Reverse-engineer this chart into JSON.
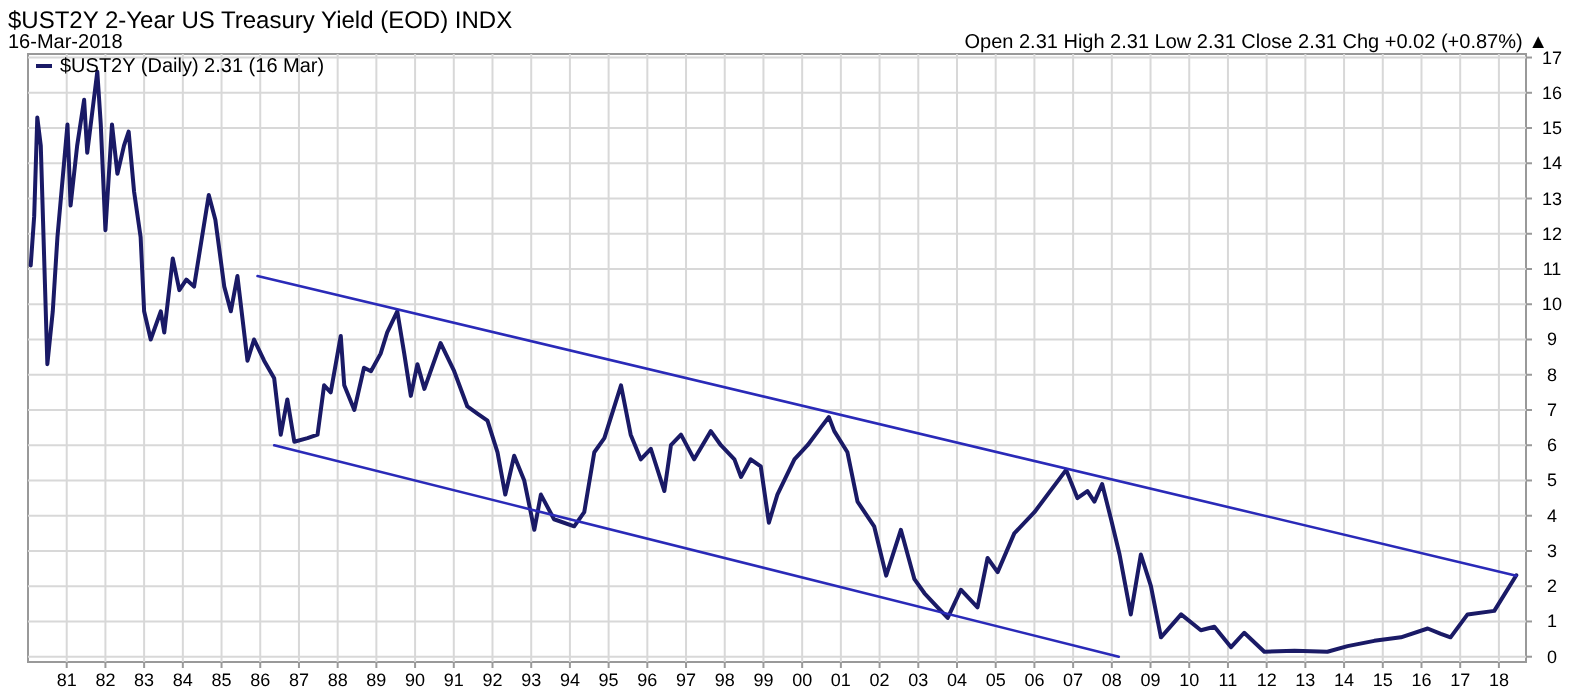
{
  "chart_data": {
    "type": "line",
    "title": "$UST2Y 2-Year US Treasury Yield (EOD) INDX",
    "subtitle": "16-Mar-2018",
    "annotations": [
      "Open 2.31 High 2.31 Low 2.31 Close 2.31 Chg +0.02 (+0.87%) ▲"
    ],
    "xlim": [
      1980,
      2018.7
    ],
    "ylim": [
      -0.15,
      17.1
    ],
    "xticks": [
      {
        "value": 1981,
        "label": "81"
      },
      {
        "value": 1982,
        "label": "82"
      },
      {
        "value": 1983,
        "label": "83"
      },
      {
        "value": 1984,
        "label": "84"
      },
      {
        "value": 1985,
        "label": "85"
      },
      {
        "value": 1986,
        "label": "86"
      },
      {
        "value": 1987,
        "label": "87"
      },
      {
        "value": 1988,
        "label": "88"
      },
      {
        "value": 1989,
        "label": "89"
      },
      {
        "value": 1990,
        "label": "90"
      },
      {
        "value": 1991,
        "label": "91"
      },
      {
        "value": 1992,
        "label": "92"
      },
      {
        "value": 1993,
        "label": "93"
      },
      {
        "value": 1994,
        "label": "94"
      },
      {
        "value": 1995,
        "label": "95"
      },
      {
        "value": 1996,
        "label": "96"
      },
      {
        "value": 1997,
        "label": "97"
      },
      {
        "value": 1998,
        "label": "98"
      },
      {
        "value": 1999,
        "label": "99"
      },
      {
        "value": 2000,
        "label": "00"
      },
      {
        "value": 2001,
        "label": "01"
      },
      {
        "value": 2002,
        "label": "02"
      },
      {
        "value": 2003,
        "label": "03"
      },
      {
        "value": 2004,
        "label": "04"
      },
      {
        "value": 2005,
        "label": "05"
      },
      {
        "value": 2006,
        "label": "06"
      },
      {
        "value": 2007,
        "label": "07"
      },
      {
        "value": 2008,
        "label": "08"
      },
      {
        "value": 2009,
        "label": "09"
      },
      {
        "value": 2010,
        "label": "10"
      },
      {
        "value": 2011,
        "label": "11"
      },
      {
        "value": 2012,
        "label": "12"
      },
      {
        "value": 2013,
        "label": "13"
      },
      {
        "value": 2014,
        "label": "14"
      },
      {
        "value": 2015,
        "label": "15"
      },
      {
        "value": 2016,
        "label": "16"
      },
      {
        "value": 2017,
        "label": "17"
      },
      {
        "value": 2018,
        "label": "18"
      }
    ],
    "yticks": [
      0,
      1,
      2,
      3,
      4,
      5,
      6,
      7,
      8,
      9,
      10,
      11,
      12,
      13,
      14,
      15,
      16,
      17
    ],
    "grid": true,
    "legend": "top left",
    "series": [
      {
        "name": "$UST2Y (Daily) 2.31 (16 Mar)",
        "color": "#1a1a66",
        "x": [
          1980.07,
          1980.16,
          1980.24,
          1980.33,
          1980.5,
          1980.64,
          1980.76,
          1981.02,
          1981.1,
          1981.27,
          1981.45,
          1981.53,
          1981.79,
          1981.88,
          1982.0,
          1982.17,
          1982.31,
          1982.48,
          1982.6,
          1982.74,
          1982.91,
          1983.0,
          1983.17,
          1983.43,
          1983.52,
          1983.74,
          1983.91,
          1984.09,
          1984.29,
          1984.67,
          1984.84,
          1985.07,
          1985.24,
          1985.41,
          1985.67,
          1985.84,
          1986.1,
          1986.36,
          1986.53,
          1986.7,
          1986.88,
          1987.22,
          1987.48,
          1987.65,
          1987.82,
          1988.08,
          1988.17,
          1988.43,
          1988.68,
          1988.86,
          1989.11,
          1989.28,
          1989.54,
          1989.72,
          1989.89,
          1990.06,
          1990.24,
          1990.66,
          1991.01,
          1991.35,
          1991.61,
          1991.87,
          1992.13,
          1992.33,
          1992.56,
          1992.82,
          1993.08,
          1993.25,
          1993.59,
          1994.11,
          1994.37,
          1994.63,
          1994.89,
          1995.32,
          1995.57,
          1995.83,
          1996.09,
          1996.44,
          1996.61,
          1996.87,
          1997.21,
          1997.64,
          1997.9,
          1998.25,
          1998.42,
          1998.67,
          1998.93,
          1999.14,
          1999.36,
          1999.8,
          2000.14,
          2000.48,
          2000.69,
          2000.83,
          2001.17,
          2001.43,
          2001.86,
          2002.17,
          2002.55,
          2002.9,
          2003.16,
          2003.5,
          2003.76,
          2004.1,
          2004.53,
          2004.79,
          2005.05,
          2005.48,
          2006.0,
          2006.82,
          2007.11,
          2007.37,
          2007.55,
          2007.75,
          2007.98,
          2008.2,
          2008.49,
          2008.75,
          2009.01,
          2009.27,
          2009.79,
          2010.3,
          2010.65,
          2011.08,
          2011.42,
          2011.94,
          2012.72,
          2013.57,
          2014.09,
          2014.78,
          2015.47,
          2016.16,
          2016.5,
          2016.75,
          2017.19,
          2017.88,
          2018.45
        ],
        "values": [
          11.1,
          12.5,
          15.3,
          14.5,
          8.3,
          9.8,
          11.9,
          15.1,
          12.8,
          14.5,
          15.8,
          14.3,
          16.6,
          15.1,
          12.1,
          15.1,
          13.7,
          14.5,
          14.9,
          13.2,
          11.9,
          9.8,
          9.0,
          9.8,
          9.2,
          11.3,
          10.4,
          10.7,
          10.5,
          13.1,
          12.4,
          10.5,
          9.8,
          10.8,
          8.4,
          9.0,
          8.4,
          7.9,
          6.3,
          7.3,
          6.1,
          6.2,
          6.3,
          7.7,
          7.5,
          9.1,
          7.7,
          7.0,
          8.2,
          8.1,
          8.6,
          9.2,
          9.8,
          8.6,
          7.4,
          8.3,
          7.6,
          8.9,
          8.1,
          7.1,
          6.9,
          6.7,
          5.8,
          4.6,
          5.7,
          5.0,
          3.6,
          4.6,
          3.9,
          3.7,
          4.1,
          5.8,
          6.2,
          7.7,
          6.3,
          5.6,
          5.9,
          4.7,
          6.0,
          6.3,
          5.6,
          6.4,
          6.0,
          5.6,
          5.1,
          5.6,
          5.4,
          3.8,
          4.6,
          5.6,
          6.0,
          6.5,
          6.8,
          6.4,
          5.8,
          4.4,
          3.7,
          2.3,
          3.6,
          2.2,
          1.8,
          1.4,
          1.1,
          1.9,
          1.4,
          2.8,
          2.4,
          3.5,
          4.1,
          5.3,
          4.5,
          4.7,
          4.4,
          4.9,
          3.9,
          2.9,
          1.2,
          2.9,
          2.0,
          0.55,
          1.2,
          0.75,
          0.85,
          0.27,
          0.68,
          0.14,
          0.17,
          0.14,
          0.3,
          0.45,
          0.55,
          0.8,
          0.65,
          0.55,
          1.2,
          1.3,
          2.31
        ]
      },
      {
        "type": "line",
        "color": "#2a2ab8",
        "x": [
          1985.93,
          2018.45
        ],
        "values": [
          10.8,
          2.3
        ]
      },
      {
        "type": "line",
        "color": "#2a2ab8",
        "x": [
          1986.36,
          2008.18
        ],
        "values": [
          6.0,
          0
        ]
      }
    ]
  }
}
